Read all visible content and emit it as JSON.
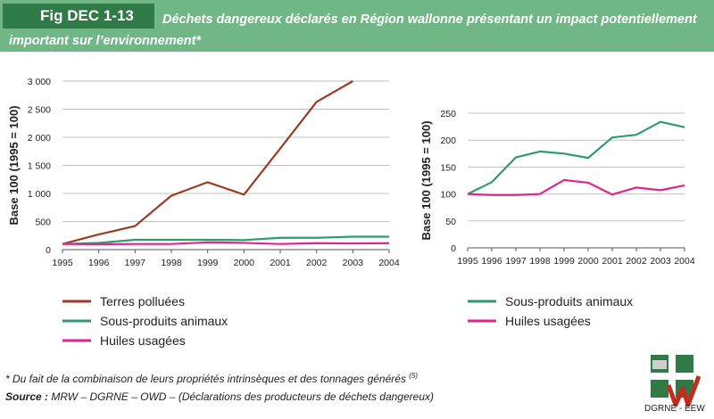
{
  "header": {
    "fig_label": "Fig DEC 1-13",
    "title_line1": "Déchets dangereux déclarés en Région wallonne présentant un impact potentiellement",
    "title_line2": "important sur l’environnement*",
    "bg_color": "#71b685",
    "label_bg_color": "#2f7a47"
  },
  "chart_data": [
    {
      "type": "line",
      "ylabel": "Base 100 (1995 = 100)",
      "xlabel": "",
      "x": [
        "1995",
        "1996",
        "1997",
        "1998",
        "1999",
        "2000",
        "2001",
        "2002",
        "2003",
        "2004"
      ],
      "ylim": [
        0,
        3000
      ],
      "yticks": [
        0,
        500,
        1000,
        1500,
        2000,
        2500,
        3000
      ],
      "ytick_labels": [
        "0",
        "500",
        "1 000",
        "1 500",
        "2 000",
        "2 500",
        "3 000"
      ],
      "grid": "horizontal",
      "series": [
        {
          "name": "Terres polluées",
          "color": "#9c3a22",
          "values": [
            100,
            270,
            420,
            960,
            1200,
            980,
            1800,
            2630,
            3000,
            null
          ]
        },
        {
          "name": "Sous-produits animaux",
          "color": "#2e9a6e",
          "values": [
            100,
            120,
            175,
            175,
            175,
            170,
            210,
            210,
            230,
            230
          ]
        },
        {
          "name": "Huiles usagées",
          "color": "#e0258f",
          "values": [
            100,
            95,
            100,
            100,
            130,
            120,
            100,
            115,
            110,
            115
          ]
        }
      ]
    },
    {
      "type": "line",
      "ylabel": "Base 100 (1995 = 100)",
      "xlabel": "",
      "x": [
        "1995",
        "1996",
        "1997",
        "1998",
        "1999",
        "2000",
        "2001",
        "2002",
        "2003",
        "2004"
      ],
      "ylim": [
        0,
        250
      ],
      "yticks": [
        0,
        50,
        100,
        150,
        200,
        250
      ],
      "ytick_labels": [
        "0",
        "50",
        "100",
        "150",
        "200",
        "250"
      ],
      "grid": "horizontal",
      "series": [
        {
          "name": "Sous-produits animaux",
          "color": "#2e9a6e",
          "values": [
            100,
            122,
            168,
            179,
            175,
            167,
            205,
            210,
            234,
            224
          ]
        },
        {
          "name": "Huiles usagées",
          "color": "#e0258f",
          "values": [
            100,
            98,
            98,
            100,
            126,
            121,
            99,
            112,
            107,
            116
          ]
        }
      ]
    }
  ],
  "footnote": "* Du fait de la combinaison de leurs propriétés intrinsèques et des tonnages générés",
  "footnote_ref": "(5)",
  "source_label": "Source :",
  "source_text": "MRW – DGRNE – OWD – (Déclarations des producteurs de déchets dangereux)",
  "logo": {
    "caption": "DGRNE - EEW",
    "color": "#2f7a47"
  }
}
